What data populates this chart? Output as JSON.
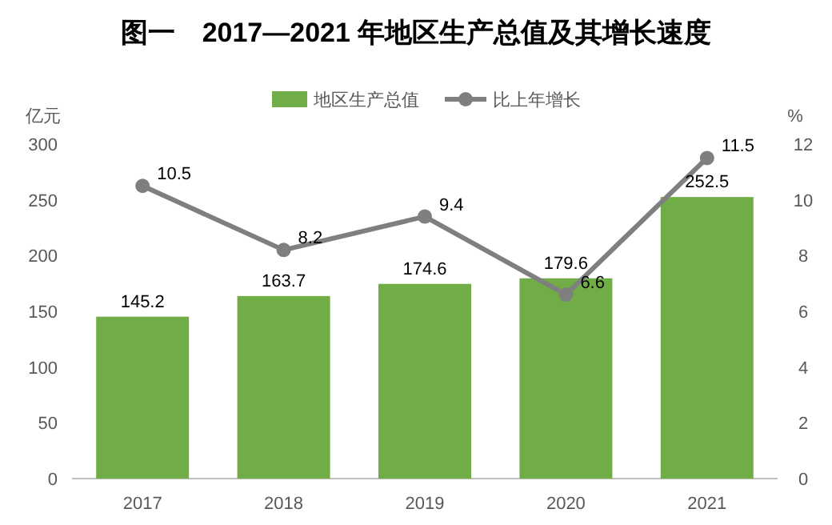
{
  "chart_data": {
    "type": "bar",
    "title": "图一　2017—2021 年地区生产总值及其增长速度",
    "categories": [
      "2017",
      "2018",
      "2019",
      "2020",
      "2021"
    ],
    "series": [
      {
        "name": "地区生产总值",
        "color": "#70ad47",
        "values": [
          145.2,
          163.7,
          174.6,
          179.6,
          252.5
        ]
      },
      {
        "name": "比上年增长",
        "type": "line",
        "axis": "y2",
        "color": "#7f7f7f",
        "values": [
          10.5,
          8.2,
          9.4,
          6.6,
          11.5
        ]
      }
    ],
    "ylabel": "亿元",
    "y2label": "%",
    "ylim": [
      0,
      300
    ],
    "yticks": [
      0,
      50,
      100,
      150,
      200,
      250,
      300
    ],
    "y2lim": [
      0,
      12
    ],
    "y2ticks": [
      0,
      2,
      4,
      6,
      8,
      10,
      12
    ],
    "data_labels": true,
    "legend": "top",
    "marker": "circle"
  }
}
